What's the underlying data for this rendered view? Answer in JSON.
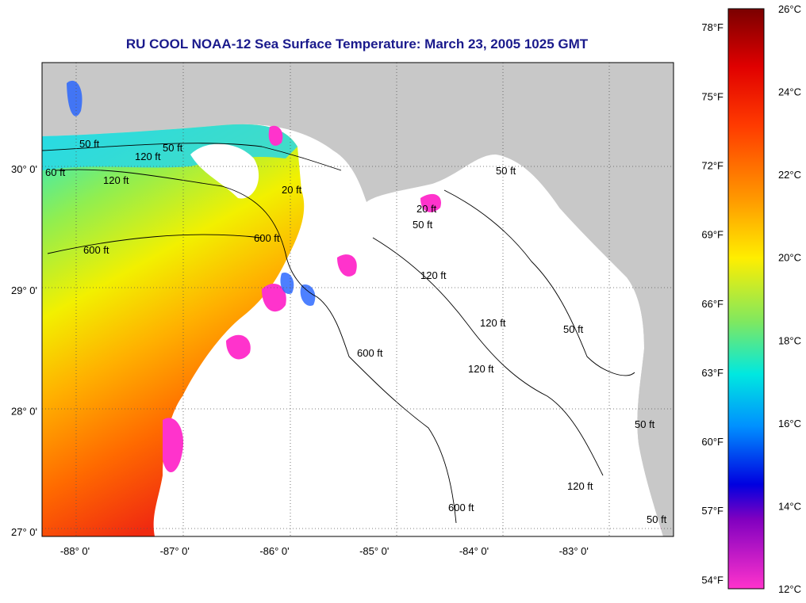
{
  "title": "RU COOL  NOAA-12  Sea Surface Temperature:  March 23, 2005 1025 GMT",
  "map": {
    "lon_ticks": [
      -88,
      -87,
      -86,
      -85,
      -84,
      -83
    ],
    "lon_labels": [
      "-88° 0'",
      "-87° 0'",
      "-86° 0'",
      "-85° 0'",
      "-84° 0'",
      "-83° 0'"
    ],
    "lat_ticks": [
      30,
      29,
      28,
      27
    ],
    "lat_labels": [
      "30° 0'",
      "29° 0'",
      "28° 0'",
      "27° 0'"
    ],
    "lon_range": [
      -88.33,
      -82.0
    ],
    "lat_range": [
      26.96,
      30.88
    ],
    "land_color": "#c8c8c8",
    "cloud_color": "#ffffff",
    "contour_labels": [
      "50 ft",
      "50 ft",
      "120 ft",
      "120 ft",
      "600 ft",
      "600 ft",
      "20 ft",
      "50 ft",
      "120 ft",
      "600 ft",
      "120 ft",
      "50 ft",
      "20 ft",
      "120 ft",
      "600 ft",
      "120 ft",
      "50 ft",
      "50 ft",
      "60 ft",
      "50 ft"
    ]
  },
  "colorbar": {
    "f_labels": [
      "78°F",
      "75°F",
      "72°F",
      "69°F",
      "66°F",
      "63°F",
      "60°F",
      "57°F",
      "54°F"
    ],
    "f_values": [
      78,
      75,
      72,
      69,
      66,
      63,
      60,
      57,
      54
    ],
    "c_labels": [
      "26°C",
      "24°C",
      "22°C",
      "20°C",
      "18°C",
      "16°C",
      "14°C",
      "12°C"
    ],
    "c_values": [
      26,
      24,
      22,
      20,
      18,
      16,
      14,
      12
    ],
    "range_c": [
      12,
      26
    ]
  }
}
